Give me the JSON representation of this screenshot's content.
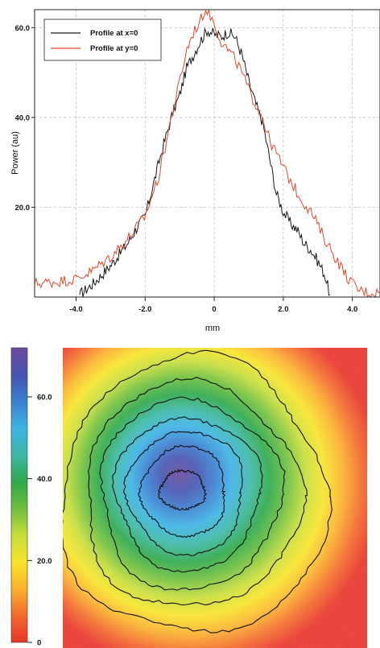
{
  "chart_data": [
    {
      "type": "line",
      "title": "",
      "xlabel": "mm",
      "ylabel": "Power (au)",
      "xlim": [
        -5.2,
        4.8
      ],
      "ylim": [
        0,
        64
      ],
      "x_ticks": [
        {
          "value": -4.0,
          "label": "-4.0"
        },
        {
          "value": -2.0,
          "label": "-2.0"
        },
        {
          "value": 0.0,
          "label": "0"
        },
        {
          "value": 2.0,
          "label": "2.0"
        },
        {
          "value": 4.0,
          "label": "4.0"
        }
      ],
      "y_ticks": [
        {
          "value": 20.0,
          "label": "20.0"
        },
        {
          "value": 40.0,
          "label": "40.0"
        },
        {
          "value": 60.0,
          "label": "60.0"
        }
      ],
      "grid": true,
      "legend_position": "top-left",
      "series": [
        {
          "name": "Profile at x=0",
          "color": "#1a1a1a",
          "x": [
            -3.9,
            -3.5,
            -3.0,
            -2.5,
            -2.2,
            -2.0,
            -1.8,
            -1.5,
            -1.2,
            -1.0,
            -0.8,
            -0.6,
            -0.4,
            -0.2,
            0.0,
            0.2,
            0.4,
            0.6,
            0.8,
            1.0,
            1.2,
            1.4,
            1.6,
            1.8,
            2.0,
            2.2,
            2.4,
            2.6,
            2.8,
            3.0,
            3.2,
            3.35
          ],
          "y": [
            0.5,
            3.0,
            7.0,
            12.0,
            16.0,
            18.0,
            24.0,
            33.0,
            41.0,
            45.0,
            51.0,
            54.0,
            57.0,
            59.5,
            58.5,
            58.0,
            59.0,
            58.0,
            54.0,
            48.0,
            43.0,
            39.0,
            31.0,
            23.0,
            19.0,
            16.5,
            15.0,
            12.0,
            10.5,
            8.0,
            5.0,
            0.5
          ]
        },
        {
          "name": "Profile at y=0",
          "color": "#e8452a",
          "x": [
            -5.2,
            -4.5,
            -4.0,
            -3.5,
            -3.0,
            -2.5,
            -2.0,
            -1.6,
            -1.3,
            -1.0,
            -0.8,
            -0.6,
            -0.4,
            -0.3,
            -0.2,
            0.0,
            0.2,
            0.4,
            0.6,
            0.8,
            1.0,
            1.2,
            1.4,
            1.6,
            1.8,
            2.0,
            2.2,
            2.5,
            2.8,
            3.0,
            3.2,
            3.5,
            3.8,
            4.0,
            4.2,
            4.5,
            4.8
          ],
          "y": [
            3.0,
            3.5,
            4.0,
            6.0,
            9.0,
            13.0,
            18.0,
            27.0,
            38.0,
            48.0,
            55.0,
            59.0,
            61.5,
            63.5,
            64.0,
            61.0,
            57.0,
            55.0,
            53.0,
            50.0,
            46.0,
            43.0,
            40.0,
            35.0,
            32.0,
            29.0,
            26.0,
            22.0,
            19.0,
            16.0,
            13.0,
            9.0,
            5.0,
            3.0,
            1.5,
            1.0,
            1.0
          ]
        }
      ]
    },
    {
      "type": "heatmap",
      "title": "",
      "colorbar_label": "",
      "colorbar_range": [
        0,
        72
      ],
      "colorbar_ticks": [
        {
          "value": 0,
          "label": "0"
        },
        {
          "value": 20.0,
          "label": "20.0"
        },
        {
          "value": 40.0,
          "label": "40.0"
        },
        {
          "value": 60.0,
          "label": "60.0"
        }
      ],
      "colorscale": [
        "#e8342a",
        "#f36b2b",
        "#fbb12c",
        "#f7e42a",
        "#c7dd3a",
        "#6fbf3e",
        "#2ea84a",
        "#3cb8a6",
        "#3db3e3",
        "#3a7fd0",
        "#4654b0",
        "#6c4a9e"
      ],
      "contour_levels": [
        5,
        15,
        25,
        35,
        45,
        55,
        62
      ]
    }
  ]
}
